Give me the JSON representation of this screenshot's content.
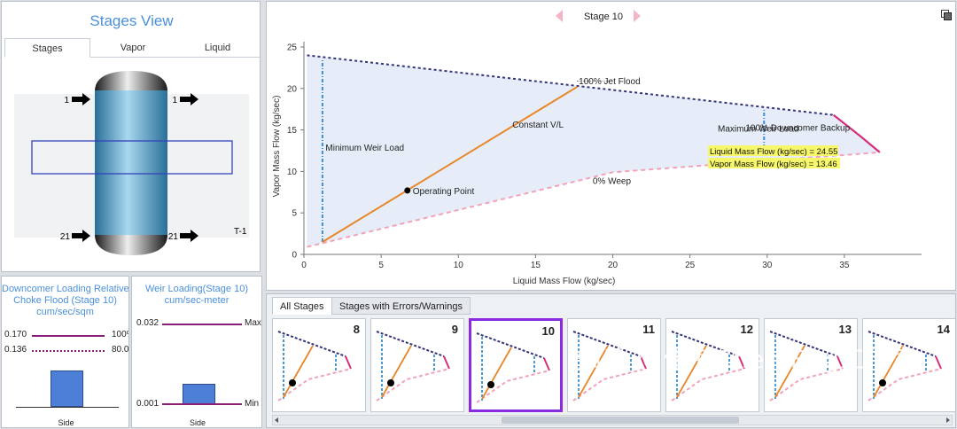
{
  "stages_view": {
    "title": "Stages View",
    "tabs": [
      "Stages",
      "Vapor",
      "Liquid"
    ],
    "column_name": "T-1",
    "feeds": {
      "top_left": "1",
      "top_right": "1",
      "bottom_left": "21",
      "bottom_right": "21"
    }
  },
  "downcomer_panel": {
    "title_lines": [
      "Downcomer Loading Relative to",
      "Choke Flood (Stage 10)",
      "cum/sec/sqm"
    ],
    "row1_value": "0.170",
    "row1_right": "100%",
    "row2_value": "0.136",
    "row2_right": "80.0",
    "bar_label": "Side",
    "level_fraction": 0.55
  },
  "weir_panel": {
    "title_lines": [
      "Weir Loading(Stage 10)",
      "cum/sec-meter"
    ],
    "max_value": "0.032",
    "max_label": "Max",
    "min_value": "0.001",
    "min_label": "Min",
    "bar_label": "Side",
    "level_fraction": 0.3
  },
  "chart_header": {
    "stage_label": "Stage 10"
  },
  "chart_data": {
    "type": "line",
    "xlabel": "Liquid Mass Flow (kg/sec)",
    "ylabel": "Vapor Mass Flow (kg/sec)",
    "xlim": [
      0,
      40
    ],
    "ylim": [
      0,
      25
    ],
    "x_ticks": [
      0,
      5,
      10,
      15,
      20,
      25,
      30,
      35
    ],
    "y_ticks": [
      0,
      5,
      10,
      15,
      20,
      25
    ],
    "series": [
      {
        "name": "100% Jet Flood",
        "points": [
          [
            0.2,
            24.0
          ],
          [
            34.3,
            16.8
          ]
        ]
      },
      {
        "name": "100% Downcomer Backup",
        "points": [
          [
            34.3,
            16.8
          ],
          [
            36.0,
            14.3
          ],
          [
            37.3,
            12.3
          ]
        ]
      },
      {
        "name": "0% Weep",
        "points": [
          [
            0.2,
            0.9
          ],
          [
            20.0,
            9.9
          ],
          [
            37.3,
            12.3
          ]
        ]
      },
      {
        "name": "Minimum Weir Load",
        "points": [
          [
            1.2,
            1.5
          ],
          [
            1.2,
            23.6
          ]
        ]
      },
      {
        "name": "Maximum Weir Load",
        "points": [
          [
            29.8,
            10.9
          ],
          [
            29.8,
            17.6
          ]
        ]
      },
      {
        "name": "Constant V/L",
        "points": [
          [
            1.2,
            1.5
          ],
          [
            17.7,
            20.2
          ]
        ]
      }
    ],
    "operating_point": {
      "label": "Operating Point",
      "x": 6.7,
      "y": 7.7
    },
    "annotations": [
      {
        "text": "100% Jet Flood",
        "x": 17.8,
        "y": 20.5
      },
      {
        "text": "Constant V/L",
        "x": 13.5,
        "y": 15.3
      },
      {
        "text": "Minimum Weir Load",
        "x": 1.4,
        "y": 12.5
      },
      {
        "text": "Maximum Weir Load",
        "x": 26.8,
        "y": 14.8
      },
      {
        "text": "100% Downcomer Backup",
        "x": 28.6,
        "y": 14.9
      },
      {
        "text": "0% Weep",
        "x": 18.7,
        "y": 8.5
      }
    ],
    "tooltip": {
      "line1": "Liquid Mass Flow (kg/sec) = 24.55",
      "line2": "Vapor Mass Flow (kg/sec) = 13.46"
    },
    "colors": {
      "jet_flood": "#33337a",
      "downcomer": "#d4307a",
      "weep": "#f2a3bb",
      "weir": "#3b8fd0",
      "constant_vl": "#e8872a",
      "fill": "#e6edf8"
    }
  },
  "stage_tabs": {
    "all": "All Stages",
    "errors": "Stages with Errors/Warnings"
  },
  "stage_thumbs": [
    {
      "stage": "8",
      "selected": false,
      "point": true
    },
    {
      "stage": "9",
      "selected": false,
      "point": true
    },
    {
      "stage": "10",
      "selected": true,
      "point": true
    },
    {
      "stage": "11",
      "selected": false,
      "point": false
    },
    {
      "stage": "12",
      "selected": false,
      "point": false
    },
    {
      "stage": "13",
      "selected": false,
      "point": false
    },
    {
      "stage": "14",
      "selected": false,
      "point": true
    }
  ],
  "watermark": "知乎 @化海ChemEng工作室"
}
